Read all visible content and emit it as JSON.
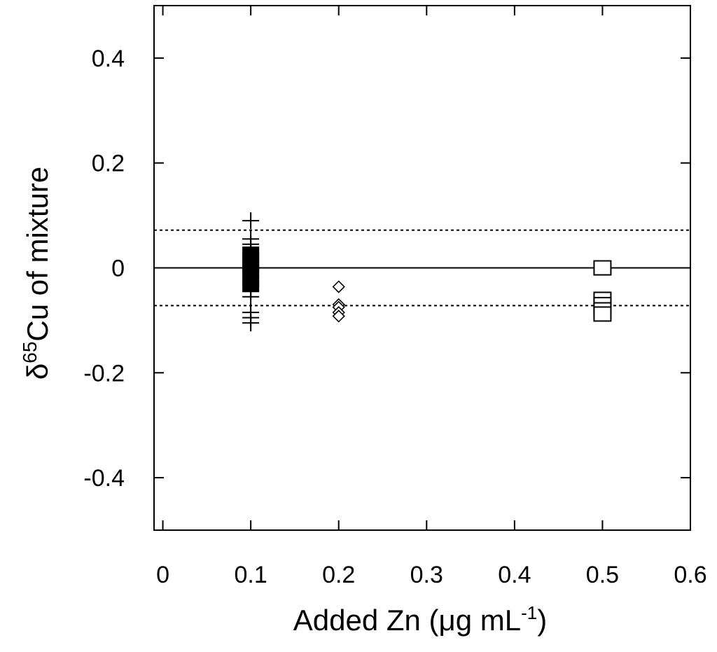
{
  "chart_data": {
    "type": "scatter",
    "title": "",
    "xlabel": {
      "text": "Added Zn (",
      "mu": "μ",
      "rest": "g mL",
      "sup": "-1",
      "close": ")"
    },
    "ylabel": {
      "delta": "δ",
      "sup": "65",
      "text": "Cu of mixture"
    },
    "xlim": [
      -0.01,
      0.6
    ],
    "ylim": [
      -0.5,
      0.5
    ],
    "xticks": [
      0,
      0.1,
      0.2,
      0.3,
      0.4,
      0.5,
      0.6
    ],
    "xtick_labels": [
      "0",
      "0.1",
      "0.2",
      "0.3",
      "0.4",
      "0.5",
      "0.6"
    ],
    "yticks": [
      -0.4,
      -0.2,
      0,
      0.2,
      0.4
    ],
    "ytick_labels": [
      "-0.4",
      "-0.2",
      "0",
      "0.2",
      "0.4"
    ],
    "grid": false,
    "legend": "none",
    "reference_lines": [
      {
        "y": 0,
        "style": "solid"
      },
      {
        "y": 0.072,
        "style": "dotted"
      },
      {
        "y": -0.072,
        "style": "dotted"
      }
    ],
    "series": [
      {
        "marker": "plus",
        "x": 0.1,
        "values": [
          0.09,
          0.055,
          0.045,
          0.035,
          0.025,
          0.015,
          0.005,
          -0.005,
          -0.015,
          -0.025,
          -0.035,
          -0.045,
          -0.055,
          -0.085,
          -0.095,
          -0.105
        ]
      },
      {
        "marker": "filled-square",
        "x": 0.1,
        "values": [
          0.03,
          0.02,
          0.01,
          0.0,
          -0.01,
          -0.025,
          -0.035
        ]
      },
      {
        "marker": "open-diamond",
        "x": 0.2,
        "values": [
          -0.036,
          -0.07,
          -0.075,
          -0.085,
          -0.092
        ]
      },
      {
        "marker": "open-square",
        "x": 0.5,
        "values": [
          0.0,
          -0.06,
          -0.07,
          -0.08,
          -0.088
        ]
      }
    ]
  }
}
